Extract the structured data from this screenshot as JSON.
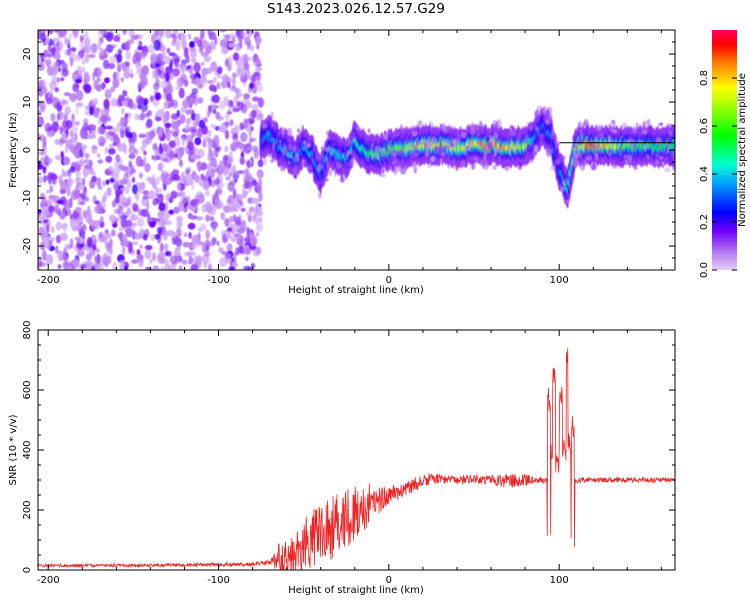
{
  "title": "S143.2023.026.12.57.G29",
  "colors": {
    "snr_line": "#ee2222",
    "trace_line": "#000000"
  },
  "chart_data": [
    {
      "type": "heatmap",
      "xlabel": "Height of straight line (km)",
      "ylabel": "Frequency (Hz)",
      "xlim": [
        -206,
        168
      ],
      "ylim": [
        -25,
        25
      ],
      "xticks": [
        -200,
        -100,
        0,
        100
      ],
      "yticks": [
        -20,
        -10,
        0,
        10,
        20
      ],
      "colorbar": {
        "label": "Normalized spectral amplitude",
        "range": [
          0,
          1
        ],
        "ticks": [
          "0.0",
          "0.2",
          "0.4",
          "0.6",
          "0.8"
        ],
        "colormap": "hsv-rainbow"
      },
      "noise_region_x": [
        -206,
        -75
      ],
      "ridge": {
        "x": [
          -75,
          -70,
          -65,
          -60,
          -55,
          -50,
          -45,
          -40,
          -35,
          -30,
          -25,
          -20,
          -15,
          -10,
          -5,
          0,
          10,
          20,
          30,
          40,
          50,
          60,
          70,
          80,
          85,
          90,
          95,
          100,
          105,
          110,
          120,
          130,
          140,
          150,
          160,
          168
        ],
        "y": [
          2,
          3,
          1,
          0,
          -2,
          1,
          -1,
          -5,
          0,
          -1,
          -2,
          2,
          0,
          -1,
          -1,
          0,
          0.5,
          1,
          1,
          0.5,
          1,
          1,
          0.5,
          1,
          2,
          5,
          3,
          -4,
          -8,
          1,
          1,
          1,
          0.5,
          1,
          0.5,
          1
        ],
        "amplitude": [
          0.3,
          0.4,
          0.35,
          0.45,
          0.4,
          0.35,
          0.4,
          0.35,
          0.4,
          0.45,
          0.4,
          0.45,
          0.5,
          0.55,
          0.55,
          0.6,
          0.65,
          0.8,
          0.75,
          0.7,
          0.8,
          0.9,
          0.8,
          0.7,
          0.4,
          0.3,
          0.35,
          0.3,
          0.5,
          0.75,
          0.95,
          0.75,
          0.6,
          0.55,
          0.55,
          0.55
        ]
      },
      "trace_line": {
        "x": [
          100,
          168
        ],
        "y": 1.5
      }
    },
    {
      "type": "line",
      "xlabel": "Height of straight line (km)",
      "ylabel": "SNR (10 * v/v)",
      "xlim": [
        -206,
        168
      ],
      "ylim": [
        0,
        800
      ],
      "xticks": [
        -200,
        -100,
        0,
        100
      ],
      "yticks": [
        0,
        200,
        400,
        600,
        800
      ],
      "envelope": {
        "x": [
          -206,
          -150,
          -100,
          -80,
          -70,
          -60,
          -50,
          -40,
          -30,
          -20,
          -10,
          0,
          10,
          20,
          30,
          40,
          50,
          60,
          70,
          80,
          88,
          92,
          96,
          100,
          104,
          108,
          112,
          120,
          140,
          168
        ],
        "y": [
          15,
          15,
          18,
          20,
          25,
          40,
          80,
          120,
          150,
          180,
          220,
          250,
          270,
          300,
          305,
          300,
          305,
          300,
          295,
          300,
          300,
          300,
          300,
          300,
          300,
          300,
          300,
          300,
          300,
          300
        ],
        "noise": [
          5,
          5,
          6,
          6,
          10,
          60,
          90,
          110,
          110,
          100,
          60,
          30,
          25,
          20,
          15,
          15,
          15,
          15,
          25,
          20,
          10,
          10,
          10,
          10,
          10,
          10,
          10,
          8,
          8,
          8
        ]
      },
      "spikes": [
        {
          "x": 94,
          "y": 620
        },
        {
          "x": 96,
          "y": 420
        },
        {
          "x": 97,
          "y": 720
        },
        {
          "x": 99,
          "y": 380
        },
        {
          "x": 101,
          "y": 650
        },
        {
          "x": 103,
          "y": 450
        },
        {
          "x": 105,
          "y": 790
        },
        {
          "x": 106,
          "y": 460
        },
        {
          "x": 108,
          "y": 520
        }
      ]
    }
  ]
}
